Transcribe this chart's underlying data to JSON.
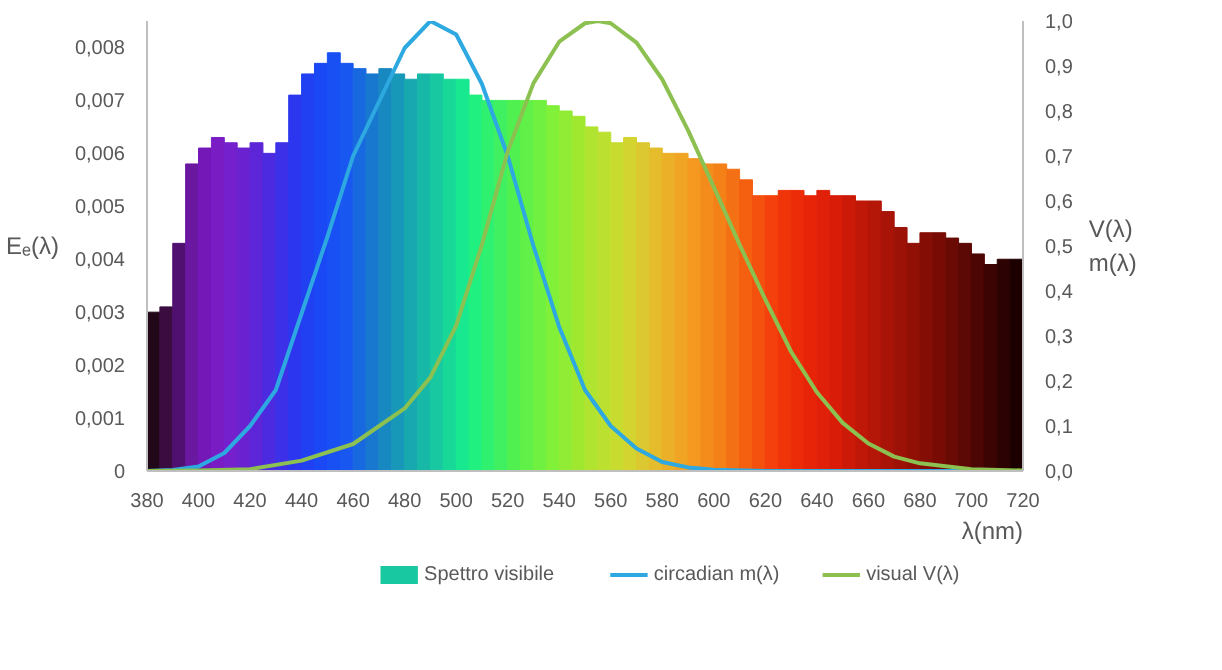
{
  "chart_data": {
    "type": "line",
    "xlabel": "λ(nm)",
    "ylabel": "Eₑ(λ)",
    "y2label": "V(λ)\nm(λ)",
    "xlim": [
      380,
      720
    ],
    "xticks": [
      380,
      400,
      420,
      440,
      460,
      480,
      500,
      520,
      540,
      560,
      580,
      600,
      620,
      640,
      660,
      680,
      700,
      720
    ],
    "ylim": [
      0,
      0.0085
    ],
    "yticks": [
      0,
      {
        "value": 0.001,
        "label": "0,001"
      },
      {
        "value": 0.002,
        "label": "0,002"
      },
      {
        "value": 0.003,
        "label": "0,003"
      },
      {
        "value": 0.004,
        "label": "0,004"
      },
      {
        "value": 0.005,
        "label": "0,005"
      },
      {
        "value": 0.006,
        "label": "0,006"
      },
      {
        "value": 0.007,
        "label": "0,007"
      },
      {
        "value": 0.008,
        "label": "0,008"
      }
    ],
    "y2lim": [
      0,
      1.0
    ],
    "y2ticks": [
      {
        "value": 0,
        "label": "0,0"
      },
      {
        "value": 0.1,
        "label": "0,1"
      },
      {
        "value": 0.2,
        "label": "0,2"
      },
      {
        "value": 0.3,
        "label": "0,3"
      },
      {
        "value": 0.4,
        "label": "0,4"
      },
      {
        "value": 0.5,
        "label": "0,5"
      },
      {
        "value": 0.6,
        "label": "0,6"
      },
      {
        "value": 0.7,
        "label": "0,7"
      },
      {
        "value": 0.8,
        "label": "0,8"
      },
      {
        "value": 0.9,
        "label": "0,9"
      },
      {
        "value": 1.0,
        "label": "1,0"
      }
    ],
    "grid": false,
    "legend": "bottom",
    "marker": "none",
    "line_style": "solid",
    "series": [
      {
        "name": "Spettro visibile",
        "type": "bar",
        "x": [
          382.5,
          387.5,
          392.5,
          397.5,
          402.5,
          407.5,
          412.5,
          417.5,
          422.5,
          427.5,
          432.5,
          437.5,
          442.5,
          447.5,
          452.5,
          457.5,
          462.5,
          467.5,
          472.5,
          477.5,
          482.5,
          487.5,
          492.5,
          497.5,
          502.5,
          507.5,
          512.5,
          517.5,
          522.5,
          527.5,
          532.5,
          537.5,
          542.5,
          547.5,
          552.5,
          557.5,
          562.5,
          567.5,
          572.5,
          577.5,
          582.5,
          587.5,
          592.5,
          597.5,
          602.5,
          607.5,
          612.5,
          617.5,
          622.5,
          627.5,
          632.5,
          637.5,
          642.5,
          647.5,
          652.5,
          657.5,
          662.5,
          667.5,
          672.5,
          677.5,
          682.5,
          687.5,
          692.5,
          697.5,
          702.5,
          707.5,
          712.5,
          717.5
        ],
        "values": [
          0.003,
          0.0031,
          0.0043,
          0.0058,
          0.0061,
          0.0063,
          0.0062,
          0.0061,
          0.0062,
          0.006,
          0.0062,
          0.0071,
          0.0075,
          0.0077,
          0.0079,
          0.0077,
          0.0076,
          0.0075,
          0.0076,
          0.0075,
          0.0074,
          0.0075,
          0.0075,
          0.0074,
          0.0074,
          0.0071,
          0.007,
          0.007,
          0.007,
          0.007,
          0.007,
          0.0069,
          0.0068,
          0.0067,
          0.0065,
          0.0064,
          0.0062,
          0.0063,
          0.0062,
          0.0061,
          0.006,
          0.006,
          0.0059,
          0.0058,
          0.0058,
          0.0057,
          0.0055,
          0.0052,
          0.0052,
          0.0053,
          0.0053,
          0.0052,
          0.0053,
          0.0052,
          0.0052,
          0.0051,
          0.0051,
          0.0049,
          0.0046,
          0.0043,
          0.0045,
          0.0045,
          0.0044,
          0.0043,
          0.0041,
          0.0039,
          0.004,
          0.004
        ],
        "colors": [
          "#200818",
          "#3a0c40",
          "#501070",
          "#6a18a0",
          "#7418b8",
          "#7a1cc4",
          "#7420cc",
          "#6a22d0",
          "#5c26d8",
          "#4c2ae0",
          "#3c30e8",
          "#2c36ee",
          "#2040f2",
          "#1a48f4",
          "#1850f4",
          "#1858f0",
          "#1868e0",
          "#1878d0",
          "#1888c0",
          "#1898b8",
          "#18a8b0",
          "#18b8a8",
          "#18c8a0",
          "#18d898",
          "#18e890",
          "#20f080",
          "#30f070",
          "#40f060",
          "#50f050",
          "#60f048",
          "#70f040",
          "#80f038",
          "#90ec34",
          "#a0e830",
          "#b0e430",
          "#bce030",
          "#c8dc30",
          "#d4d430",
          "#dcc830",
          "#e4bc2c",
          "#ecb028",
          "#f0a424",
          "#f49820",
          "#f48c1c",
          "#f48018",
          "#f47014",
          "#f46010",
          "#f4500e",
          "#f4400c",
          "#f0340a",
          "#ec2c08",
          "#e82408",
          "#e02008",
          "#d81c08",
          "#cc1a08",
          "#c01808",
          "#b41608",
          "#a81408",
          "#9c1206",
          "#901006",
          "#840e06",
          "#780c04",
          "#6a0a04",
          "#5c0804",
          "#4c0604",
          "#3c0402",
          "#2c0202",
          "#1c0000"
        ]
      },
      {
        "name": "circadian m(λ)",
        "axis": "y2",
        "color": "#2ea8e0",
        "x": [
          380,
          390,
          400,
          410,
          420,
          430,
          440,
          450,
          460,
          470,
          480,
          490,
          500,
          510,
          520,
          530,
          540,
          550,
          560,
          570,
          580,
          590,
          600,
          620,
          650,
          720
        ],
        "values": [
          0,
          0.002,
          0.01,
          0.04,
          0.1,
          0.18,
          0.35,
          0.52,
          0.7,
          0.82,
          0.94,
          1.0,
          0.97,
          0.86,
          0.7,
          0.5,
          0.32,
          0.18,
          0.1,
          0.05,
          0.02,
          0.008,
          0.003,
          0,
          0,
          0
        ]
      },
      {
        "name": "visual V(λ)",
        "axis": "y2",
        "color": "#8cc050",
        "x": [
          380,
          400,
          420,
          440,
          460,
          480,
          490,
          500,
          510,
          520,
          530,
          540,
          550,
          555,
          560,
          570,
          580,
          590,
          600,
          610,
          620,
          630,
          640,
          650,
          660,
          670,
          680,
          700,
          720
        ],
        "values": [
          0,
          0.001,
          0.004,
          0.023,
          0.06,
          0.139,
          0.208,
          0.323,
          0.503,
          0.71,
          0.862,
          0.954,
          0.995,
          1.0,
          0.995,
          0.952,
          0.87,
          0.757,
          0.631,
          0.503,
          0.381,
          0.265,
          0.175,
          0.107,
          0.061,
          0.032,
          0.017,
          0.004,
          0.001
        ]
      }
    ]
  }
}
